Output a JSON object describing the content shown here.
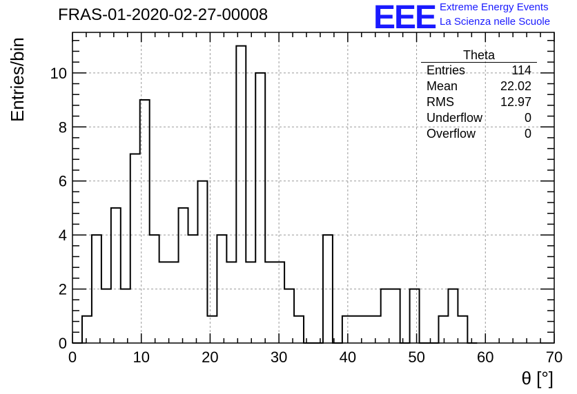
{
  "chart_data": {
    "type": "bar",
    "title": "FRAS-01-2020-02-27-00008",
    "xlabel": "θ [°]",
    "ylabel": "Entries/bin",
    "xlim": [
      0,
      70
    ],
    "ylim": [
      0,
      11.5
    ],
    "grid": true,
    "bin_width": 1.4,
    "x_ticks": [
      "0",
      "10",
      "20",
      "30",
      "40",
      "50",
      "60",
      "70"
    ],
    "y_ticks": [
      "0",
      "2",
      "4",
      "6",
      "8",
      "10"
    ],
    "bin_lower_edges": [
      0,
      1.4,
      2.8,
      4.2,
      5.6,
      7.0,
      8.4,
      9.8,
      11.2,
      12.6,
      14.0,
      15.4,
      16.8,
      18.2,
      19.6,
      21.0,
      22.4,
      23.8,
      25.2,
      26.6,
      28.0,
      29.4,
      30.8,
      32.2,
      33.6,
      35.0,
      36.4,
      37.8,
      39.2,
      40.6,
      42.0,
      43.4,
      44.8,
      46.2,
      47.6,
      49.0,
      50.4,
      51.8,
      53.2,
      54.6,
      56.0,
      57.4
    ],
    "values": [
      0,
      1,
      4,
      2,
      5,
      2,
      7,
      9,
      4,
      3,
      3,
      5,
      4,
      6,
      1,
      4,
      3,
      11,
      3,
      10,
      3,
      3,
      2,
      1,
      0,
      0,
      4,
      0,
      1,
      1,
      1,
      1,
      2,
      2,
      0,
      2,
      0,
      0,
      1,
      2,
      1,
      0
    ]
  },
  "stats_box": {
    "title": "Theta",
    "rows": [
      {
        "label": "Entries",
        "value": "114"
      },
      {
        "label": "Mean",
        "value": "22.02"
      },
      {
        "label": "RMS",
        "value": "12.97"
      },
      {
        "label": "Underflow",
        "value": "0"
      },
      {
        "label": "Overflow",
        "value": "0"
      }
    ]
  },
  "logo": {
    "mark": "EEE",
    "line1": "Extreme Energy Events",
    "line2": "La Scienza nelle Scuole"
  },
  "colors": {
    "histogram": "#000000",
    "grid": "#999999",
    "logo": "#1a1aff"
  }
}
